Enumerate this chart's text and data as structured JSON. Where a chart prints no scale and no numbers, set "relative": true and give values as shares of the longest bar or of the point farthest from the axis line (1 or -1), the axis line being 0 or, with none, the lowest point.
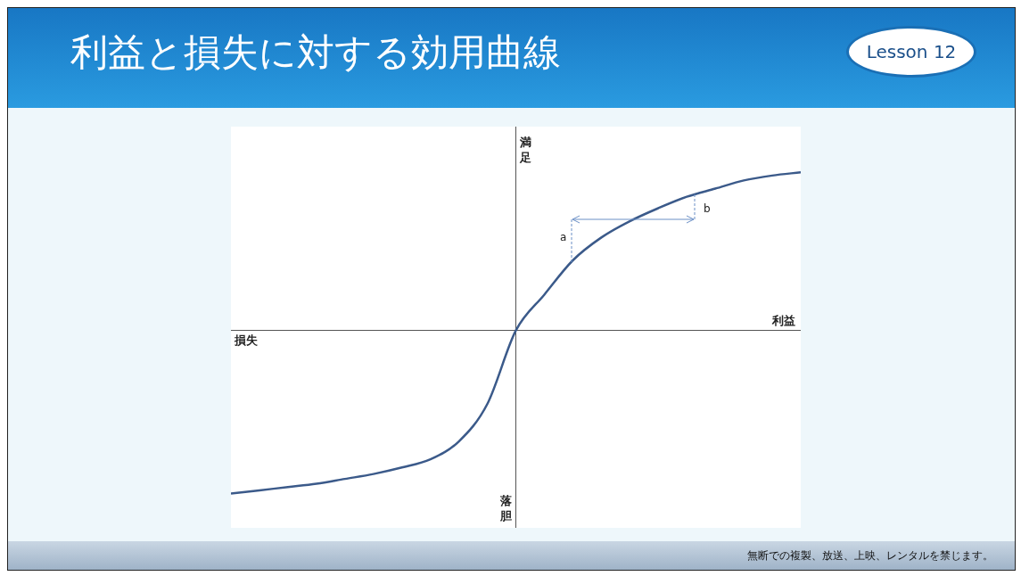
{
  "chart_data": {
    "type": "line",
    "title": "利益と損失に対する効用曲線",
    "xlabel": "利益",
    "ylabel": "満足",
    "relative": true,
    "legend": false,
    "grid": false,
    "marker": "none",
    "line_style": "solid",
    "categories": [
      null,
      null,
      null,
      null,
      null,
      null,
      null,
      null,
      null,
      null,
      null,
      null,
      null,
      null,
      null,
      null,
      null,
      null,
      null,
      null,
      null
    ],
    "series": [
      {
        "color": "#3b5a8a",
        "values": [
          -1.0,
          -0.98,
          -0.96,
          -0.94,
          -0.91,
          -0.88,
          -0.84,
          -0.79,
          -0.68,
          -0.45,
          0,
          0.22,
          0.43,
          0.57,
          0.67,
          0.75,
          0.82,
          0.87,
          0.92,
          0.95,
          0.97
        ]
      }
    ],
    "annotations": [
      "損失",
      "落胆",
      "a",
      "b",
      "Lesson 12",
      "無断での複製、放送、上映、レンタルを禁じます。"
    ]
  }
}
